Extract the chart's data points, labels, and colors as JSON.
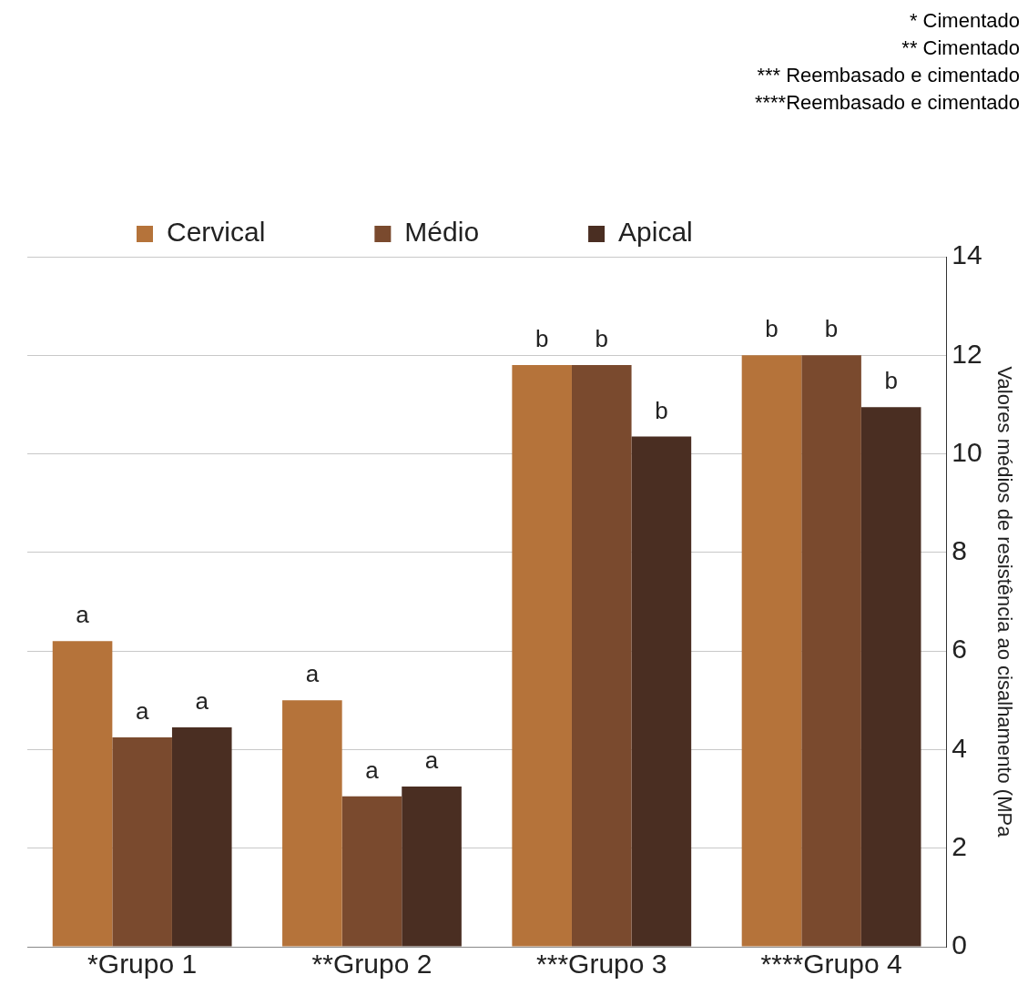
{
  "chart_data": {
    "type": "bar",
    "categories": [
      "*Grupo 1",
      "**Grupo 2",
      "***Grupo 3",
      "****Grupo 4"
    ],
    "series": [
      {
        "name": "Cervical",
        "color": "#b5733a",
        "values": [
          6.2,
          5.0,
          11.8,
          12.0
        ],
        "value_labels": [
          "a",
          "a",
          "b",
          "b"
        ]
      },
      {
        "name": "Médio",
        "color": "#7a4a2e",
        "values": [
          4.25,
          3.05,
          11.8,
          12.0
        ],
        "value_labels": [
          "a",
          "a",
          "b",
          "b"
        ]
      },
      {
        "name": "Apical",
        "color": "#4a2e22",
        "values": [
          4.45,
          3.25,
          10.35,
          10.95
        ],
        "value_labels": [
          "a",
          "a",
          "b",
          "b"
        ]
      }
    ],
    "ylabel": "Valores médios de resistência ao cisalhamento (MPa",
    "ylim": [
      0,
      14
    ],
    "yticks": [
      0,
      2,
      4,
      6,
      8,
      10,
      12,
      14
    ],
    "grid": "y",
    "legend": "top",
    "annotations": [
      "* Cimentado",
      "** Cimentado",
      "*** Reembasado e cimentado",
      "****Reembasado e cimentado"
    ]
  }
}
